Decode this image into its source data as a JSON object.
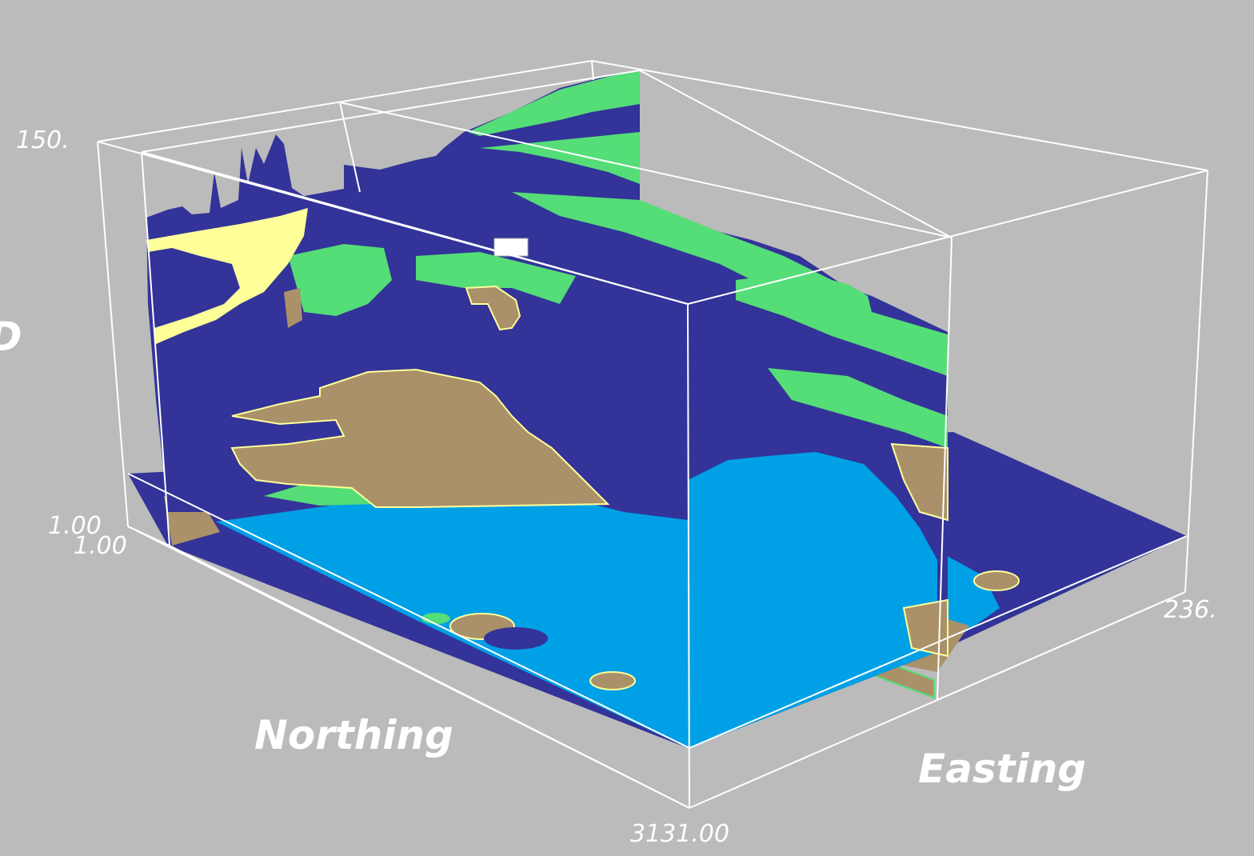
{
  "scene": {
    "background": "#bbbbbb",
    "box_color": "#ffffff",
    "palette": {
      "dark_blue": "#333399",
      "light_blue": "#00a0e6",
      "green": "#55dd77",
      "tan": "#aa9169",
      "yellow": "#ffff99"
    }
  },
  "axes": {
    "northing_label": "Northing",
    "easting_label": "Easting",
    "partial_label": "D",
    "ticks": {
      "z_max": "150.",
      "z_min": "1.00",
      "origin": "1.00",
      "northing_max": "3131.00",
      "easting_max": "236."
    }
  }
}
